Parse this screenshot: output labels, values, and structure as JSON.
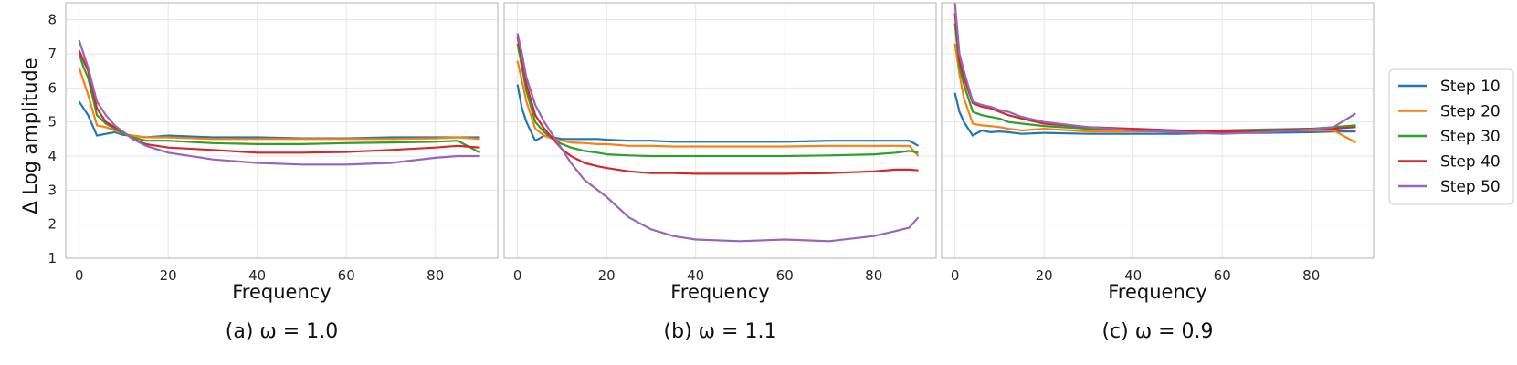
{
  "chart_data": [
    {
      "type": "line",
      "caption": "(a) ω = 1.0",
      "xlabel": "Frequency",
      "ylabel": "Δ Log amplitude",
      "xlim": [
        -3,
        94
      ],
      "ylim": [
        1,
        8.5
      ],
      "xticks": [
        0,
        20,
        40,
        60,
        80
      ],
      "yticks": [
        1,
        2,
        3,
        4,
        5,
        6,
        7,
        8
      ],
      "grid": true,
      "x": [
        0,
        1,
        2,
        4,
        6,
        8,
        10,
        12,
        15,
        20,
        30,
        40,
        50,
        60,
        70,
        80,
        85,
        90
      ],
      "series": [
        {
          "name": "Step 10",
          "values": [
            5.6,
            5.4,
            5.2,
            4.6,
            4.65,
            4.7,
            4.62,
            4.6,
            4.55,
            4.6,
            4.55,
            4.55,
            4.52,
            4.52,
            4.55,
            4.55,
            4.55,
            4.55
          ]
        },
        {
          "name": "Step 20",
          "values": [
            6.6,
            6.2,
            5.8,
            4.9,
            4.85,
            4.75,
            4.65,
            4.6,
            4.55,
            4.55,
            4.5,
            4.5,
            4.5,
            4.5,
            4.5,
            4.52,
            4.55,
            4.5
          ]
        },
        {
          "name": "Step 30",
          "values": [
            7.0,
            6.6,
            6.3,
            5.2,
            4.95,
            4.8,
            4.65,
            4.55,
            4.45,
            4.45,
            4.38,
            4.35,
            4.35,
            4.38,
            4.4,
            4.42,
            4.45,
            4.1
          ]
        },
        {
          "name": "Step 40",
          "values": [
            7.1,
            6.8,
            6.5,
            5.4,
            5.0,
            4.85,
            4.7,
            4.5,
            4.35,
            4.25,
            4.18,
            4.1,
            4.1,
            4.12,
            4.18,
            4.25,
            4.3,
            4.25
          ]
        },
        {
          "name": "Step 50",
          "values": [
            7.4,
            7.0,
            6.6,
            5.6,
            5.2,
            4.9,
            4.7,
            4.5,
            4.3,
            4.1,
            3.9,
            3.8,
            3.75,
            3.75,
            3.8,
            3.95,
            4.0,
            4.0
          ]
        }
      ]
    },
    {
      "type": "line",
      "caption": "(b) ω = 1.1",
      "xlabel": "Frequency",
      "xlim": [
        -3,
        94
      ],
      "ylim": [
        1,
        8.5
      ],
      "xticks": [
        0,
        20,
        40,
        60,
        80
      ],
      "grid": true,
      "x": [
        0,
        1,
        2,
        4,
        6,
        8,
        10,
        12,
        15,
        18,
        20,
        25,
        30,
        35,
        40,
        50,
        60,
        70,
        80,
        85,
        88,
        90
      ],
      "series": [
        {
          "name": "Step 10",
          "values": [
            6.1,
            5.4,
            5.0,
            4.45,
            4.6,
            4.55,
            4.5,
            4.5,
            4.5,
            4.5,
            4.48,
            4.45,
            4.45,
            4.42,
            4.42,
            4.42,
            4.42,
            4.45,
            4.45,
            4.45,
            4.45,
            4.3
          ]
        },
        {
          "name": "Step 20",
          "values": [
            6.8,
            6.2,
            5.6,
            4.8,
            4.6,
            4.5,
            4.45,
            4.4,
            4.38,
            4.35,
            4.35,
            4.3,
            4.3,
            4.28,
            4.28,
            4.28,
            4.28,
            4.3,
            4.3,
            4.3,
            4.3,
            4.0
          ]
        },
        {
          "name": "Step 30",
          "values": [
            7.3,
            6.6,
            5.9,
            5.0,
            4.7,
            4.5,
            4.35,
            4.25,
            4.15,
            4.1,
            4.05,
            4.02,
            4.0,
            4.0,
            4.0,
            4.0,
            4.0,
            4.02,
            4.05,
            4.1,
            4.15,
            4.1
          ]
        },
        {
          "name": "Step 40",
          "values": [
            7.5,
            6.8,
            6.1,
            5.2,
            4.8,
            4.5,
            4.2,
            4.0,
            3.8,
            3.7,
            3.65,
            3.55,
            3.5,
            3.5,
            3.48,
            3.48,
            3.48,
            3.5,
            3.55,
            3.6,
            3.6,
            3.58
          ]
        },
        {
          "name": "Step 50",
          "values": [
            7.6,
            7.0,
            6.3,
            5.5,
            5.0,
            4.6,
            4.2,
            3.8,
            3.3,
            3.0,
            2.8,
            2.2,
            1.85,
            1.65,
            1.55,
            1.5,
            1.55,
            1.5,
            1.65,
            1.8,
            1.9,
            2.2
          ]
        }
      ]
    },
    {
      "type": "line",
      "caption": "(c) ω = 0.9",
      "xlabel": "Frequency",
      "xlim": [
        -3,
        94
      ],
      "ylim": [
        1,
        8.5
      ],
      "xticks": [
        0,
        20,
        40,
        60,
        80
      ],
      "grid": true,
      "x": [
        0,
        1,
        2,
        4,
        6,
        8,
        10,
        12,
        15,
        20,
        30,
        40,
        50,
        60,
        70,
        80,
        85,
        90
      ],
      "series": [
        {
          "name": "Step 10",
          "values": [
            5.85,
            5.3,
            5.0,
            4.6,
            4.75,
            4.7,
            4.72,
            4.7,
            4.65,
            4.68,
            4.65,
            4.65,
            4.65,
            4.68,
            4.68,
            4.7,
            4.72,
            4.72
          ]
        },
        {
          "name": "Step 20",
          "values": [
            7.3,
            6.4,
            5.7,
            4.95,
            4.9,
            4.88,
            4.85,
            4.8,
            4.75,
            4.8,
            4.72,
            4.72,
            4.72,
            4.75,
            4.75,
            4.75,
            4.75,
            4.4
          ]
        },
        {
          "name": "Step 30",
          "values": [
            7.9,
            6.6,
            6.1,
            5.3,
            5.2,
            5.15,
            5.1,
            5.0,
            4.95,
            4.88,
            4.8,
            4.78,
            4.75,
            4.75,
            4.78,
            4.8,
            4.85,
            4.9
          ]
        },
        {
          "name": "Step 40",
          "values": [
            8.2,
            6.8,
            6.3,
            5.55,
            5.45,
            5.4,
            5.3,
            5.2,
            5.1,
            4.95,
            4.85,
            4.8,
            4.75,
            4.72,
            4.75,
            4.8,
            4.8,
            4.85
          ]
        },
        {
          "name": "Step 50",
          "values": [
            8.5,
            7.0,
            6.5,
            5.6,
            5.5,
            5.45,
            5.35,
            5.3,
            5.15,
            5.0,
            4.85,
            4.75,
            4.7,
            4.65,
            4.7,
            4.78,
            4.85,
            5.25
          ]
        }
      ]
    }
  ],
  "legend": {
    "placement": "right",
    "entries": [
      "Step 10",
      "Step 20",
      "Step 30",
      "Step 40",
      "Step 50"
    ]
  },
  "colors": {
    "Step 10": "#1f77b4",
    "Step 20": "#ff7f0e",
    "Step 30": "#2ca02c",
    "Step 40": "#d62728",
    "Step 50": "#9467bd",
    "grid": "#e6e6e6",
    "frame": "#bdbdbd"
  }
}
